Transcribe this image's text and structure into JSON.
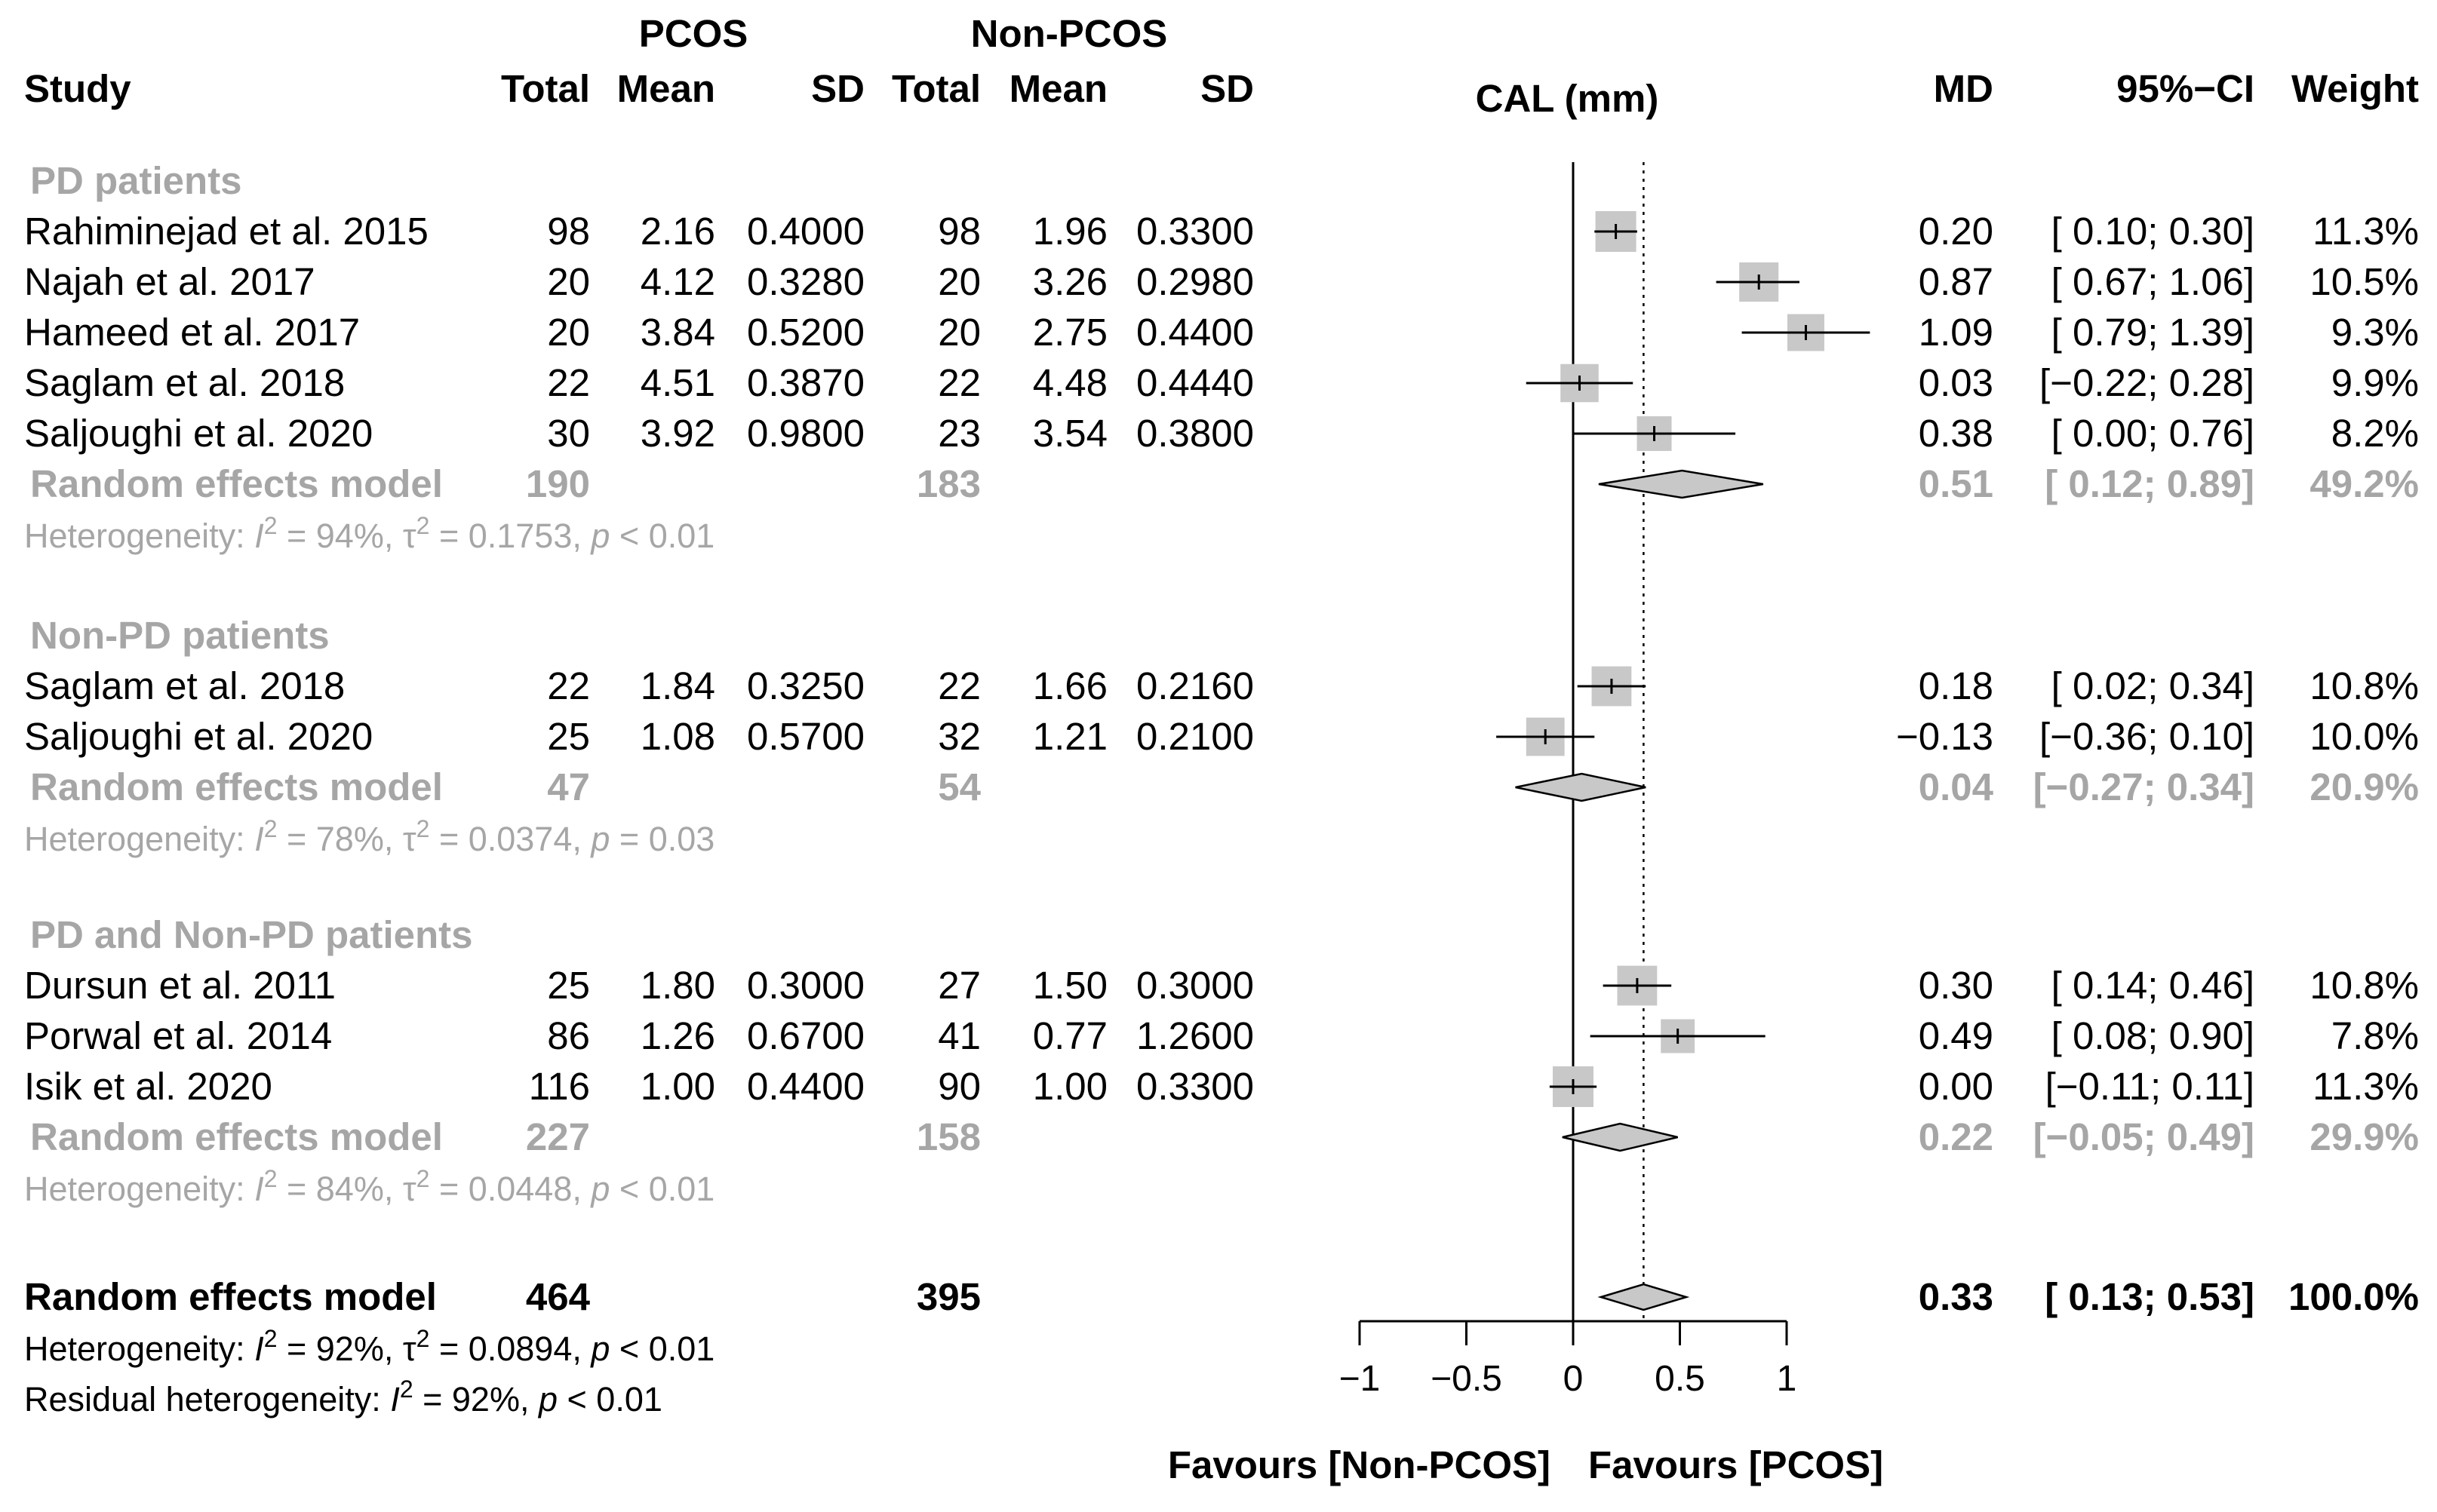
{
  "chart_data": {
    "type": "forest",
    "measure_label": "CAL (mm)",
    "group_headers": {
      "pcos": "PCOS",
      "non_pcos": "Non-PCOS"
    },
    "column_headers": {
      "study": "Study",
      "total": "Total",
      "mean": "Mean",
      "sd": "SD",
      "md": "MD",
      "ci": "95%−CI",
      "weight": "Weight"
    },
    "pooled_line": 0.33,
    "xlim": [
      -1,
      1
    ],
    "x_ticks": [
      {
        "value": -1,
        "label": "−1"
      },
      {
        "value": -0.5,
        "label": "−0.5"
      },
      {
        "value": 0,
        "label": "0"
      },
      {
        "value": 0.5,
        "label": "0.5"
      },
      {
        "value": 1,
        "label": "1"
      }
    ],
    "favours_left": "Favours [Non-PCOS]",
    "favours_right": "Favours [PCOS]",
    "subgroups": [
      {
        "title": "PD patients",
        "studies": [
          {
            "name": "Rahiminejad et al. 2015",
            "pcos_total": "98",
            "pcos_mean": "2.16",
            "pcos_sd": "0.4000",
            "non_total": "98",
            "non_mean": "1.96",
            "non_sd": "0.3300",
            "md": 0.2,
            "lo": 0.1,
            "hi": 0.3,
            "weight": 11.3,
            "md_text": "0.20",
            "ci_text": "[ 0.10; 0.30]",
            "weight_text": "11.3%"
          },
          {
            "name": "Najah et al. 2017",
            "pcos_total": "20",
            "pcos_mean": "4.12",
            "pcos_sd": "0.3280",
            "non_total": "20",
            "non_mean": "3.26",
            "non_sd": "0.2980",
            "md": 0.87,
            "lo": 0.67,
            "hi": 1.06,
            "weight": 10.5,
            "md_text": "0.87",
            "ci_text": "[ 0.67; 1.06]",
            "weight_text": "10.5%"
          },
          {
            "name": "Hameed et al. 2017",
            "pcos_total": "20",
            "pcos_mean": "3.84",
            "pcos_sd": "0.5200",
            "non_total": "20",
            "non_mean": "2.75",
            "non_sd": "0.4400",
            "md": 1.09,
            "lo": 0.79,
            "hi": 1.39,
            "weight": 9.3,
            "md_text": "1.09",
            "ci_text": "[ 0.79; 1.39]",
            "weight_text": "9.3%"
          },
          {
            "name": "Saglam et al. 2018",
            "pcos_total": "22",
            "pcos_mean": "4.51",
            "pcos_sd": "0.3870",
            "non_total": "22",
            "non_mean": "4.48",
            "non_sd": "0.4440",
            "md": 0.03,
            "lo": -0.22,
            "hi": 0.28,
            "weight": 9.9,
            "md_text": "0.03",
            "ci_text": "[−0.22; 0.28]",
            "weight_text": "9.9%"
          },
          {
            "name": "Saljoughi et al. 2020",
            "pcos_total": "30",
            "pcos_mean": "3.92",
            "pcos_sd": "0.9800",
            "non_total": "23",
            "non_mean": "3.54",
            "non_sd": "0.3800",
            "md": 0.38,
            "lo": 0.0,
            "hi": 0.76,
            "weight": 8.2,
            "md_text": "0.38",
            "ci_text": "[ 0.00; 0.76]",
            "weight_text": "8.2%"
          }
        ],
        "model": {
          "label": "Random effects model",
          "pcos_total": "190",
          "non_total": "183",
          "md": 0.51,
          "lo": 0.12,
          "hi": 0.89,
          "md_text": "0.51",
          "ci_text": "[ 0.12; 0.89]",
          "weight_text": "49.2%"
        },
        "heterogeneity": {
          "i2": "94%",
          "tau2": "0.1753",
          "p": "p < 0.01"
        }
      },
      {
        "title": "Non-PD patients",
        "studies": [
          {
            "name": "Saglam et al. 2018",
            "pcos_total": "22",
            "pcos_mean": "1.84",
            "pcos_sd": "0.3250",
            "non_total": "22",
            "non_mean": "1.66",
            "non_sd": "0.2160",
            "md": 0.18,
            "lo": 0.02,
            "hi": 0.34,
            "weight": 10.8,
            "md_text": "0.18",
            "ci_text": "[ 0.02; 0.34]",
            "weight_text": "10.8%"
          },
          {
            "name": "Saljoughi et al. 2020",
            "pcos_total": "25",
            "pcos_mean": "1.08",
            "pcos_sd": "0.5700",
            "non_total": "32",
            "non_mean": "1.21",
            "non_sd": "0.2100",
            "md": -0.13,
            "lo": -0.36,
            "hi": 0.1,
            "weight": 10.0,
            "md_text": "−0.13",
            "ci_text": "[−0.36; 0.10]",
            "weight_text": "10.0%"
          }
        ],
        "model": {
          "label": "Random effects model",
          "pcos_total": "47",
          "non_total": "54",
          "md": 0.04,
          "lo": -0.27,
          "hi": 0.34,
          "md_text": "0.04",
          "ci_text": "[−0.27; 0.34]",
          "weight_text": "20.9%"
        },
        "heterogeneity": {
          "i2": "78%",
          "tau2": "0.0374",
          "p": "p = 0.03"
        }
      },
      {
        "title": "PD and Non-PD patients",
        "studies": [
          {
            "name": "Dursun et al. 2011",
            "pcos_total": "25",
            "pcos_mean": "1.80",
            "pcos_sd": "0.3000",
            "non_total": "27",
            "non_mean": "1.50",
            "non_sd": "0.3000",
            "md": 0.3,
            "lo": 0.14,
            "hi": 0.46,
            "weight": 10.8,
            "md_text": "0.30",
            "ci_text": "[ 0.14; 0.46]",
            "weight_text": "10.8%"
          },
          {
            "name": "Porwal et al. 2014",
            "pcos_total": "86",
            "pcos_mean": "1.26",
            "pcos_sd": "0.6700",
            "non_total": "41",
            "non_mean": "0.77",
            "non_sd": "1.2600",
            "md": 0.49,
            "lo": 0.08,
            "hi": 0.9,
            "weight": 7.8,
            "md_text": "0.49",
            "ci_text": "[ 0.08; 0.90]",
            "weight_text": "7.8%"
          },
          {
            "name": "Isik et al. 2020",
            "pcos_total": "116",
            "pcos_mean": "1.00",
            "pcos_sd": "0.4400",
            "non_total": "90",
            "non_mean": "1.00",
            "non_sd": "0.3300",
            "md": 0.0,
            "lo": -0.11,
            "hi": 0.11,
            "weight": 11.3,
            "md_text": "0.00",
            "ci_text": "[−0.11; 0.11]",
            "weight_text": "11.3%"
          }
        ],
        "model": {
          "label": "Random effects model",
          "pcos_total": "227",
          "non_total": "158",
          "md": 0.22,
          "lo": -0.05,
          "hi": 0.49,
          "md_text": "0.22",
          "ci_text": "[−0.05; 0.49]",
          "weight_text": "29.9%"
        },
        "heterogeneity": {
          "i2": "84%",
          "tau2": "0.0448",
          "p": "p < 0.01"
        }
      }
    ],
    "overall": {
      "label": "Random effects model",
      "pcos_total": "464",
      "non_total": "395",
      "md": 0.33,
      "lo": 0.13,
      "hi": 0.53,
      "md_text": "0.33",
      "ci_text": "[ 0.13; 0.53]",
      "weight_text": "100.0%",
      "heterogeneity": {
        "i2": "92%",
        "tau2": "0.0894",
        "p": "p < 0.01"
      },
      "residual_heterogeneity": {
        "i2": "92%",
        "p": "p < 0.01"
      }
    },
    "labels": {
      "heterogeneity_prefix": "Heterogeneity: ",
      "residual_prefix": "Residual heterogeneity: ",
      "i2_symbol": "I",
      "tau2_symbol": "τ",
      "squared": "2",
      "equals": " = "
    },
    "colors": {
      "text": "#000000",
      "subgroup_text": "#a6a6a6",
      "square_fill": "#c8c8c8",
      "diamond_fill": "#c8c8c8",
      "line": "#000000"
    }
  }
}
